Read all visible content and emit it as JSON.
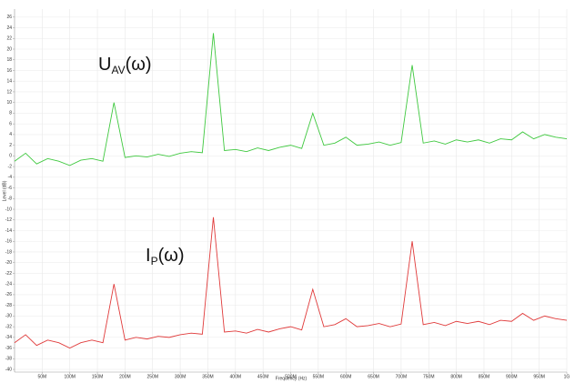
{
  "chart_data": {
    "type": "line",
    "xlabel": "Frequency (Hz)",
    "ylabel": "Level (dB)",
    "annotations": [
      {
        "base": "U",
        "subscript": "AV",
        "suffix": "(ω)"
      },
      {
        "base": "I",
        "subscript": "P",
        "suffix": "(ω)"
      }
    ],
    "x": [
      0,
      20000000,
      40000000,
      60000000,
      80000000,
      100000000,
      120000000,
      140000000,
      160000000,
      180000000,
      200000000,
      220000000,
      240000000,
      260000000,
      280000000,
      300000000,
      320000000,
      340000000,
      360000000,
      380000000,
      400000000,
      420000000,
      440000000,
      460000000,
      480000000,
      500000000,
      520000000,
      540000000,
      560000000,
      580000000,
      600000000,
      620000000,
      640000000,
      660000000,
      680000000,
      700000000,
      720000000,
      740000000,
      760000000,
      780000000,
      800000000,
      820000000,
      840000000,
      860000000,
      880000000,
      900000000,
      920000000,
      940000000,
      960000000,
      980000000,
      1000000000
    ],
    "series": [
      {
        "color": "#3fc83f",
        "values": [
          -1,
          0.5,
          -1.5,
          -0.5,
          -1,
          -1.8,
          -0.8,
          -0.5,
          -1,
          10,
          -0.3,
          0,
          -0.2,
          0.3,
          -0.1,
          0.5,
          0.8,
          0.6,
          23,
          1,
          1.2,
          0.8,
          1.5,
          1,
          1.6,
          2,
          1.4,
          8,
          2,
          2.4,
          3.5,
          2,
          2.2,
          2.6,
          2,
          2.5,
          17,
          2.4,
          2.8,
          2.2,
          3,
          2.6,
          3,
          2.4,
          3.2,
          3,
          4.5,
          3.2,
          4,
          3.5,
          3.2
        ]
      },
      {
        "color": "#e03a3a",
        "values": [
          -35,
          -33.5,
          -35.5,
          -34.5,
          -35,
          -36,
          -35,
          -34.5,
          -35,
          -24,
          -34.5,
          -34,
          -34.3,
          -33.8,
          -34,
          -33.5,
          -33.2,
          -33.4,
          -11.5,
          -33,
          -32.8,
          -33.2,
          -32.5,
          -33,
          -32.4,
          -32,
          -32.6,
          -25,
          -32,
          -31.6,
          -30.5,
          -32,
          -31.8,
          -31.4,
          -32,
          -31.5,
          -16,
          -31.6,
          -31.2,
          -31.8,
          -31,
          -31.4,
          -31,
          -31.6,
          -30.8,
          -31,
          -29.5,
          -30.8,
          -30,
          -30.5,
          -30.8
        ]
      }
    ],
    "xlim": [
      0,
      1000000000
    ],
    "xticks": [
      {
        "value": 50000000,
        "label": "50M"
      },
      {
        "value": 100000000,
        "label": "100M"
      },
      {
        "value": 150000000,
        "label": "150M"
      },
      {
        "value": 200000000,
        "label": "200M"
      },
      {
        "value": 250000000,
        "label": "250M"
      },
      {
        "value": 300000000,
        "label": "300M"
      },
      {
        "value": 350000000,
        "label": "350M"
      },
      {
        "value": 400000000,
        "label": "400M"
      },
      {
        "value": 450000000,
        "label": "450M"
      },
      {
        "value": 500000000,
        "label": "500M"
      },
      {
        "value": 550000000,
        "label": "550M"
      },
      {
        "value": 600000000,
        "label": "600M"
      },
      {
        "value": 650000000,
        "label": "650M"
      },
      {
        "value": 700000000,
        "label": "700M"
      },
      {
        "value": 750000000,
        "label": "750M"
      },
      {
        "value": 800000000,
        "label": "800M"
      },
      {
        "value": 850000000,
        "label": "850M"
      },
      {
        "value": 900000000,
        "label": "900M"
      },
      {
        "value": 950000000,
        "label": "950M"
      },
      {
        "value": 1000000000,
        "label": "1G"
      }
    ],
    "ylim": [
      -40.5,
      27.5
    ],
    "yticks": [
      -40,
      -38,
      -36,
      -34,
      -32,
      -30,
      -28,
      -26,
      -24,
      -22,
      -20,
      -18,
      -16,
      -14,
      -12,
      -10,
      -8,
      -6,
      -4,
      -2,
      0,
      2,
      4,
      6,
      8,
      10,
      12,
      14,
      16,
      18,
      20,
      22,
      24,
      26
    ],
    "grid": true
  }
}
